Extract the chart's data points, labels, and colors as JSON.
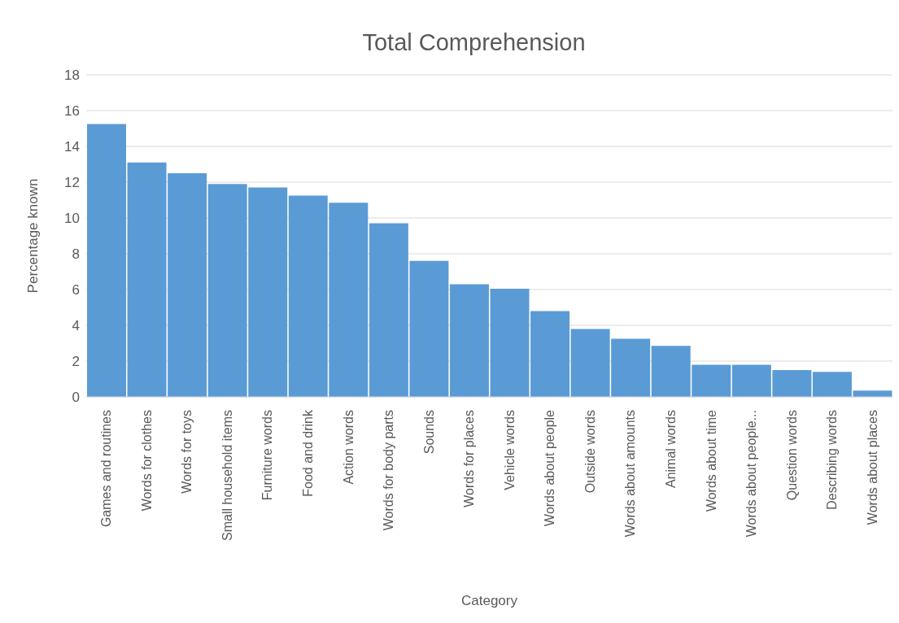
{
  "chart_data": {
    "type": "bar",
    "title": "Total Comprehension",
    "xlabel": "Category",
    "ylabel": "Percentage known",
    "categories": [
      "Games and routines",
      "Words for clothes",
      "Words for toys",
      "Small household items",
      "Furniture words",
      "Food and drink",
      "Action words",
      "Words for body parts",
      "Sounds",
      "Words for places",
      "Vehicle words",
      "Words about people",
      "Outside words",
      "Words about amounts",
      "Animal words",
      "Words about time",
      "Words about people...",
      "Question words",
      "Describing words",
      "Words about places"
    ],
    "values": [
      15.25,
      13.1,
      12.5,
      11.9,
      11.7,
      11.25,
      10.85,
      9.7,
      7.6,
      6.3,
      6.05,
      4.8,
      3.8,
      3.25,
      2.85,
      1.8,
      1.8,
      1.5,
      1.4,
      0.35
    ],
    "color": "#5b9bd5",
    "ylim": [
      0,
      18
    ],
    "yticks": [
      0,
      2,
      4,
      6,
      8,
      10,
      12,
      14,
      16,
      18
    ],
    "grid": "y"
  }
}
